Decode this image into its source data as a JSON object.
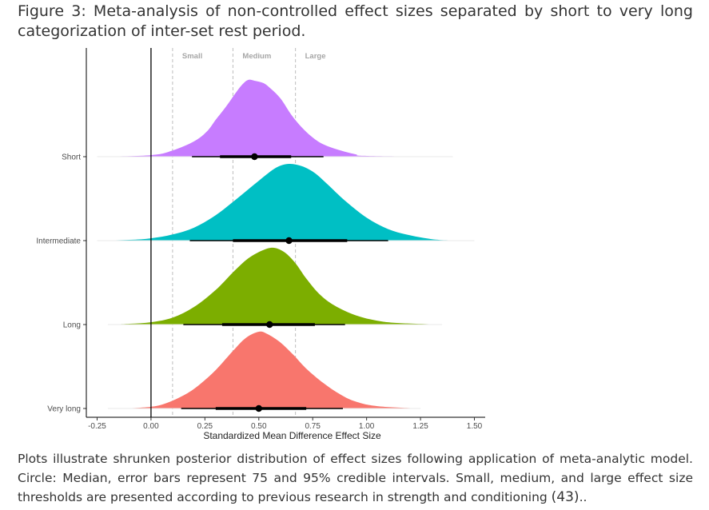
{
  "figure": {
    "label": "Figure 3",
    "title": ": Meta-analysis of non-controlled effect sizes separated by short to very long categorization of inter-set rest period.",
    "note_text": "Plots illustrate shrunken posterior distribution of effect sizes following application of meta-analytic model. Circle: Median, error bars represent 75 and 95% credible intervals. Small, medium, and large effect size thresholds are presented according to previous research in strength and conditioning ",
    "note_ref": "(43)",
    "note_end": ".."
  },
  "chart_data": {
    "type": "ridgeline",
    "xlabel": "Standardized Mean Difference Effect Size",
    "ylabel": "",
    "xlim": [
      -0.3,
      1.55
    ],
    "x_ticks": [
      -0.25,
      0.0,
      0.25,
      0.5,
      0.75,
      1.0,
      1.25,
      1.5
    ],
    "x_tick_labels": [
      "-0.25",
      "0.00",
      "0.25",
      "0.50",
      "0.75",
      "1.00",
      "1.25",
      "1.50"
    ],
    "categories": [
      "Short",
      "Intermediate",
      "Long",
      "Very long"
    ],
    "zero_line": 0.0,
    "thresholds": [
      {
        "label": "Small",
        "x": 0.1
      },
      {
        "label": "Medium",
        "x": 0.38
      },
      {
        "label": "Large",
        "x": 0.67
      }
    ],
    "series": [
      {
        "category": "Short",
        "color": "#C77CFF",
        "density_x": [
          -0.25,
          0.0,
          0.1,
          0.2,
          0.26,
          0.3,
          0.35,
          0.39,
          0.42,
          0.45,
          0.48,
          0.52,
          0.55,
          0.6,
          0.65,
          0.7,
          0.75,
          0.8,
          0.88,
          0.95,
          1.0,
          1.4
        ],
        "density_y": [
          0.0,
          0.02,
          0.08,
          0.2,
          0.33,
          0.48,
          0.66,
          0.82,
          0.93,
          1.0,
          0.99,
          0.96,
          0.9,
          0.76,
          0.55,
          0.38,
          0.25,
          0.16,
          0.08,
          0.03,
          0.01,
          0.0
        ],
        "median": 0.48,
        "ci75": [
          0.32,
          0.65
        ],
        "ci95": [
          0.19,
          0.8
        ]
      },
      {
        "category": "Intermediate",
        "color": "#00BFC4",
        "density_x": [
          -0.25,
          -0.1,
          0.0,
          0.1,
          0.2,
          0.3,
          0.4,
          0.5,
          0.58,
          0.64,
          0.7,
          0.76,
          0.82,
          0.9,
          1.0,
          1.1,
          1.2,
          1.3,
          1.38,
          1.5
        ],
        "density_y": [
          0.0,
          0.01,
          0.03,
          0.08,
          0.17,
          0.33,
          0.55,
          0.78,
          0.95,
          1.0,
          0.97,
          0.88,
          0.73,
          0.52,
          0.3,
          0.15,
          0.07,
          0.02,
          0.005,
          0.0
        ],
        "median": 0.64,
        "ci75": [
          0.38,
          0.91
        ],
        "ci95": [
          0.18,
          1.1
        ]
      },
      {
        "category": "Long",
        "color": "#7CAE00",
        "density_x": [
          -0.2,
          -0.1,
          0.0,
          0.1,
          0.2,
          0.3,
          0.38,
          0.45,
          0.52,
          0.57,
          0.62,
          0.67,
          0.72,
          0.78,
          0.85,
          0.95,
          1.05,
          1.15,
          1.35
        ],
        "density_y": [
          0.0,
          0.01,
          0.03,
          0.09,
          0.23,
          0.45,
          0.68,
          0.86,
          0.97,
          1.0,
          0.94,
          0.8,
          0.6,
          0.4,
          0.25,
          0.12,
          0.05,
          0.02,
          0.0
        ],
        "median": 0.55,
        "ci75": [
          0.33,
          0.76
        ],
        "ci95": [
          0.15,
          0.9
        ]
      },
      {
        "category": "Very long",
        "color": "#F8766D",
        "density_x": [
          -0.2,
          -0.05,
          0.05,
          0.15,
          0.22,
          0.3,
          0.38,
          0.44,
          0.5,
          0.54,
          0.6,
          0.66,
          0.72,
          0.8,
          0.88,
          0.95,
          1.05,
          1.25
        ],
        "density_y": [
          0.0,
          0.01,
          0.05,
          0.17,
          0.3,
          0.5,
          0.75,
          0.92,
          1.0,
          0.97,
          0.86,
          0.7,
          0.52,
          0.33,
          0.18,
          0.09,
          0.03,
          0.0
        ],
        "median": 0.5,
        "ci75": [
          0.3,
          0.72
        ],
        "ci95": [
          0.14,
          0.89
        ]
      }
    ]
  }
}
